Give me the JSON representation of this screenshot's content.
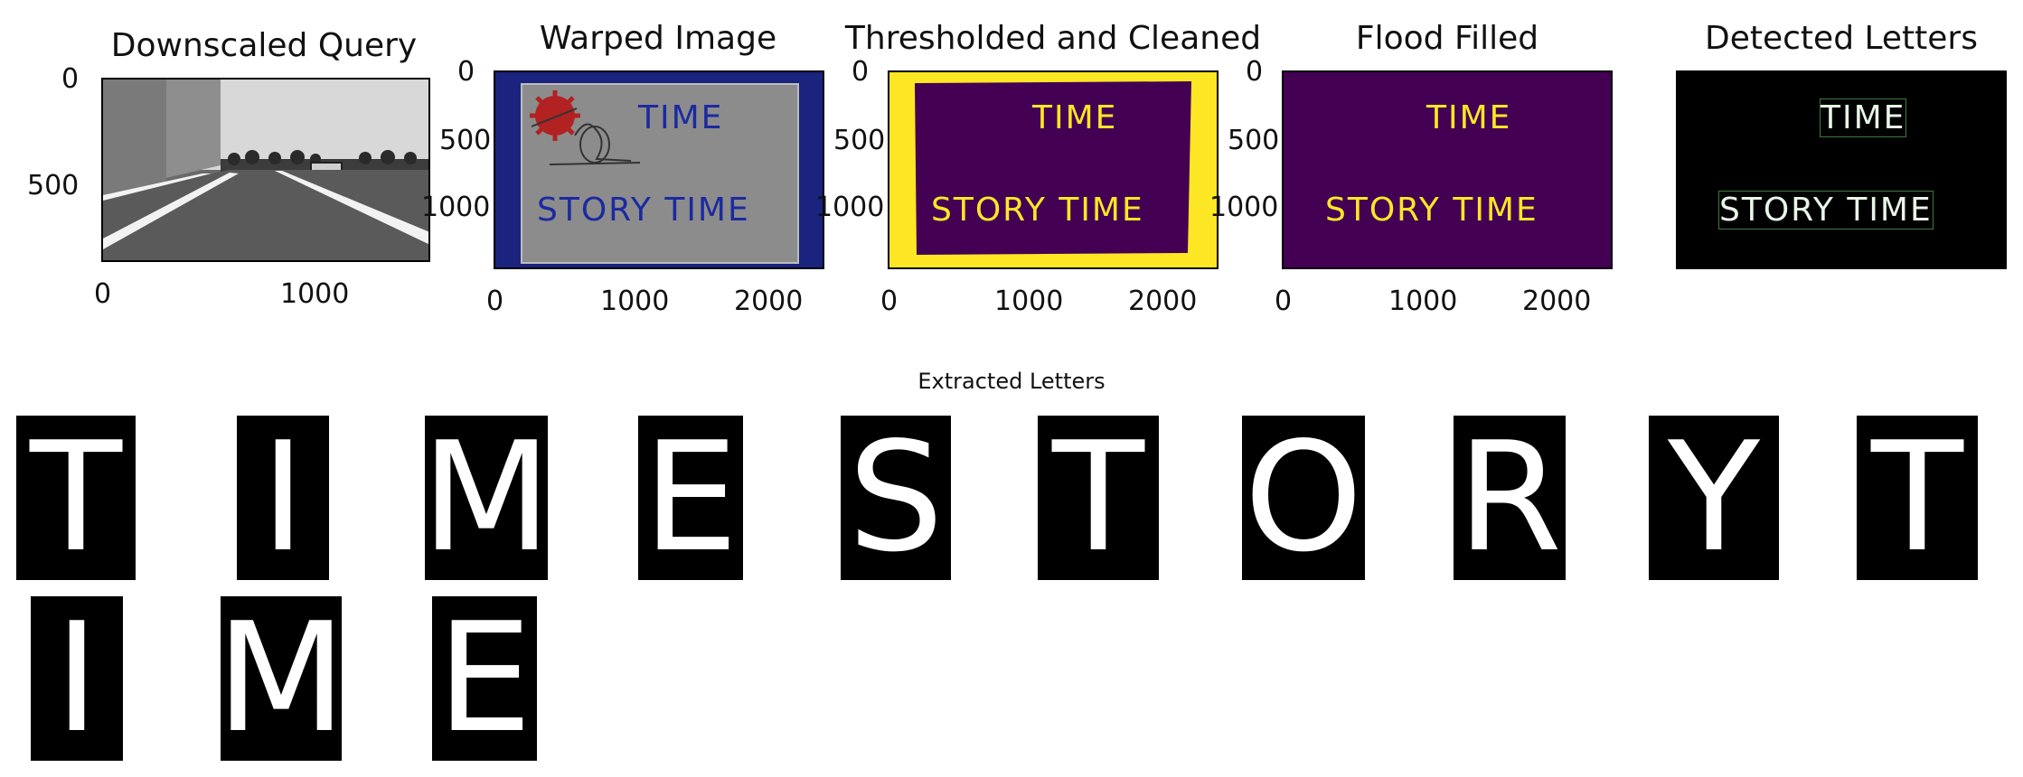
{
  "panels": [
    {
      "title": "Downscaled Query",
      "x_ticks": [
        "0",
        "1000"
      ],
      "y_ticks": [
        "0",
        "500"
      ]
    },
    {
      "title": "Warped Image",
      "x_ticks": [
        "0",
        "1000",
        "2000"
      ],
      "y_ticks": [
        "0",
        "500",
        "1000"
      ]
    },
    {
      "title": "Thresholded and Cleaned",
      "x_ticks": [
        "0",
        "1000",
        "2000"
      ],
      "y_ticks": [
        "0",
        "500",
        "1000"
      ]
    },
    {
      "title": "Flood Filled",
      "x_ticks": [
        "0",
        "1000",
        "2000"
      ],
      "y_ticks": [
        "0",
        "500",
        "1000"
      ]
    },
    {
      "title": "Detected Letters"
    }
  ],
  "sign": {
    "line1": "TIME",
    "line2": "STORY TIME"
  },
  "extracted": {
    "title": "Extracted Letters",
    "letters": [
      "T",
      "I",
      "M",
      "E",
      "S",
      "T",
      "O",
      "R",
      "Y",
      "T",
      "I",
      "M",
      "E"
    ]
  },
  "colors": {
    "warped_border": "#1a237e",
    "warped_bg": "#8c8c8c",
    "warped_text": "#1c2aa0",
    "viridis_dark": "#440154",
    "viridis_yellow": "#fde725",
    "detected_text": "#e8f5e8"
  }
}
